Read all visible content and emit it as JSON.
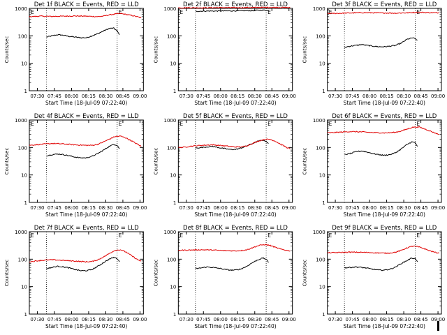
{
  "page": {
    "corner_mark_visible": true
  },
  "legend": {
    "black_label": "BLACK = Events",
    "red_label": "RED = LLD"
  },
  "colors": {
    "events": "#000000",
    "lld": "#e00000",
    "axis": "#000000",
    "background": "#ffffff"
  },
  "shared": {
    "xlabel": "Start Time (18-Jul-09 07:22:40)",
    "ylabel": "Counts/sec",
    "xticks": [
      "07:30",
      "07:45",
      "08:00",
      "08:15",
      "08:30",
      "08:45",
      "09:00"
    ],
    "xticks_minutes": [
      7,
      22,
      37,
      52,
      67,
      82,
      97
    ],
    "xlim_minutes": [
      0,
      100
    ],
    "ylim": [
      1,
      1000
    ],
    "yscale": "log",
    "yticks": [
      1,
      10,
      100,
      1000
    ],
    "ytick_labels": [
      "1",
      "10",
      "100",
      "1000"
    ],
    "dotted_vlines_minutes": [
      15,
      77
    ]
  },
  "chart_data": [
    {
      "type": "line",
      "detector": "1f",
      "title": "Det 1f BLACK = Events, RED = LLD",
      "corner_label": "E",
      "marker_label": "E",
      "series": [
        {
          "name": "Events",
          "color": "#000000",
          "x": [
            15,
            20,
            25,
            30,
            35,
            40,
            45,
            50,
            55,
            60,
            65,
            70,
            74,
            77,
            79
          ],
          "values": [
            90,
            100,
            110,
            105,
            95,
            90,
            85,
            85,
            100,
            120,
            150,
            185,
            190,
            150,
            110
          ]
        },
        {
          "name": "LLD",
          "color": "#e00000",
          "x": [
            0,
            10,
            20,
            30,
            40,
            50,
            60,
            65,
            70,
            75,
            80,
            85,
            90,
            95,
            98
          ],
          "values": [
            500,
            520,
            510,
            520,
            530,
            520,
            500,
            520,
            580,
            620,
            650,
            600,
            550,
            490,
            450
          ]
        }
      ]
    },
    {
      "type": "line",
      "detector": "2f",
      "title": "Det 2f BLACK = Events, RED = LLD",
      "corner_label": "E",
      "marker_label": "E",
      "series": [
        {
          "name": "Events",
          "color": "#000000",
          "x": [
            15,
            25,
            35,
            45,
            55,
            65,
            70,
            75,
            79
          ],
          "values": [
            780,
            800,
            800,
            810,
            820,
            830,
            850,
            860,
            840
          ]
        },
        {
          "name": "LLD",
          "color": "#e00000",
          "x": [
            0,
            10,
            20,
            30,
            40,
            50,
            60,
            70,
            80,
            90,
            98
          ],
          "values": [
            1050,
            1060,
            1050,
            1060,
            1070,
            1060,
            1070,
            1080,
            1090,
            1080,
            1070
          ]
        }
      ]
    },
    {
      "type": "line",
      "detector": "3f",
      "title": "Det 3f BLACK = Events, RED = LLD",
      "corner_label": "E",
      "marker_label": "E",
      "series": [
        {
          "name": "Events",
          "color": "#000000",
          "x": [
            15,
            20,
            25,
            30,
            35,
            40,
            45,
            50,
            55,
            60,
            65,
            70,
            75,
            79
          ],
          "values": [
            38,
            42,
            45,
            48,
            45,
            42,
            40,
            40,
            42,
            45,
            55,
            75,
            85,
            70
          ]
        },
        {
          "name": "LLD",
          "color": "#e00000",
          "x": [
            0,
            10,
            20,
            30,
            40,
            50,
            60,
            70,
            80,
            90,
            98
          ],
          "values": [
            650,
            660,
            680,
            700,
            690,
            680,
            670,
            690,
            720,
            700,
            690
          ]
        }
      ]
    },
    {
      "type": "line",
      "detector": "4f",
      "title": "Det 4f BLACK = Events, RED = LLD",
      "corner_label": "E",
      "marker_label": "E",
      "series": [
        {
          "name": "Events",
          "color": "#000000",
          "x": [
            15,
            20,
            25,
            30,
            35,
            40,
            45,
            50,
            55,
            60,
            65,
            70,
            74,
            77,
            79
          ],
          "values": [
            50,
            55,
            58,
            55,
            50,
            45,
            42,
            42,
            48,
            60,
            80,
            110,
            130,
            120,
            90
          ]
        },
        {
          "name": "LLD",
          "color": "#e00000",
          "x": [
            0,
            5,
            10,
            20,
            30,
            40,
            50,
            55,
            60,
            65,
            70,
            75,
            80,
            85,
            90,
            95,
            98
          ],
          "values": [
            120,
            125,
            130,
            140,
            135,
            125,
            120,
            120,
            130,
            160,
            200,
            250,
            260,
            220,
            170,
            130,
            110
          ]
        }
      ]
    },
    {
      "type": "line",
      "detector": "5f",
      "title": "Det 5f BLACK = Events, RED = LLD",
      "corner_label": "E",
      "marker_label": "E",
      "series": [
        {
          "name": "Events",
          "color": "#000000",
          "x": [
            15,
            20,
            25,
            30,
            35,
            40,
            45,
            50,
            55,
            60,
            65,
            70,
            74,
            77,
            79
          ],
          "values": [
            95,
            100,
            105,
            110,
            100,
            92,
            85,
            85,
            95,
            115,
            140,
            170,
            185,
            170,
            140
          ]
        },
        {
          "name": "LLD",
          "color": "#e00000",
          "x": [
            0,
            5,
            10,
            20,
            30,
            40,
            50,
            55,
            60,
            65,
            70,
            75,
            80,
            85,
            90,
            95,
            98
          ],
          "values": [
            100,
            102,
            110,
            120,
            125,
            115,
            105,
            105,
            115,
            140,
            170,
            195,
            200,
            170,
            130,
            100,
            90
          ]
        }
      ]
    },
    {
      "type": "line",
      "detector": "6f",
      "title": "Det 6f BLACK = Events, RED = LLD",
      "corner_label": "E",
      "marker_label": "E",
      "series": [
        {
          "name": "Events",
          "color": "#000000",
          "x": [
            15,
            20,
            25,
            30,
            35,
            40,
            45,
            50,
            55,
            60,
            65,
            70,
            74,
            77,
            79
          ],
          "values": [
            55,
            60,
            70,
            75,
            68,
            60,
            55,
            52,
            55,
            65,
            90,
            130,
            160,
            150,
            110
          ]
        },
        {
          "name": "LLD",
          "color": "#e00000",
          "x": [
            0,
            10,
            20,
            30,
            40,
            50,
            55,
            60,
            65,
            70,
            75,
            80,
            85,
            90,
            95,
            98
          ],
          "values": [
            340,
            360,
            380,
            370,
            350,
            340,
            345,
            360,
            400,
            470,
            550,
            560,
            480,
            400,
            330,
            300
          ]
        }
      ]
    },
    {
      "type": "line",
      "detector": "7f",
      "title": "Det 7f BLACK = Events, RED = LLD",
      "corner_label": "E",
      "marker_label": "E",
      "series": [
        {
          "name": "Events",
          "color": "#000000",
          "x": [
            15,
            20,
            25,
            30,
            35,
            40,
            45,
            50,
            55,
            60,
            65,
            70,
            74,
            77,
            79
          ],
          "values": [
            45,
            50,
            55,
            52,
            48,
            42,
            38,
            38,
            42,
            55,
            75,
            100,
            115,
            105,
            80
          ]
        },
        {
          "name": "LLD",
          "color": "#e00000",
          "x": [
            0,
            5,
            10,
            20,
            30,
            40,
            50,
            55,
            60,
            65,
            70,
            75,
            80,
            85,
            90,
            95,
            98
          ],
          "values": [
            80,
            85,
            90,
            95,
            90,
            85,
            80,
            82,
            95,
            120,
            160,
            210,
            220,
            180,
            130,
            95,
            85
          ]
        }
      ]
    },
    {
      "type": "line",
      "detector": "8f",
      "title": "Det 8f BLACK = Events, RED = LLD",
      "corner_label": "E",
      "marker_label": "E",
      "series": [
        {
          "name": "Events",
          "color": "#000000",
          "x": [
            15,
            20,
            25,
            30,
            35,
            40,
            45,
            50,
            55,
            60,
            65,
            70,
            74,
            77,
            79
          ],
          "values": [
            45,
            48,
            52,
            50,
            47,
            43,
            40,
            40,
            44,
            55,
            75,
            95,
            110,
            100,
            75
          ]
        },
        {
          "name": "LLD",
          "color": "#e00000",
          "x": [
            0,
            10,
            20,
            30,
            40,
            50,
            55,
            60,
            65,
            70,
            75,
            80,
            85,
            90,
            95,
            98
          ],
          "values": [
            210,
            215,
            220,
            215,
            205,
            200,
            205,
            220,
            260,
            310,
            340,
            320,
            270,
            230,
            210,
            200
          ]
        }
      ]
    },
    {
      "type": "line",
      "detector": "9f",
      "title": "Det 9f BLACK = Events, RED = LLD",
      "corner_label": "E",
      "marker_label": "E",
      "series": [
        {
          "name": "Events",
          "color": "#000000",
          "x": [
            15,
            20,
            25,
            30,
            35,
            40,
            45,
            50,
            55,
            60,
            65,
            70,
            74,
            77,
            79
          ],
          "values": [
            48,
            50,
            52,
            50,
            47,
            43,
            40,
            40,
            43,
            52,
            70,
            90,
            110,
            105,
            80
          ]
        },
        {
          "name": "LLD",
          "color": "#e00000",
          "x": [
            0,
            10,
            20,
            30,
            40,
            50,
            55,
            60,
            65,
            70,
            75,
            80,
            85,
            90,
            95,
            98
          ],
          "values": [
            170,
            175,
            180,
            178,
            172,
            165,
            168,
            180,
            210,
            260,
            300,
            280,
            240,
            200,
            175,
            165
          ]
        }
      ]
    }
  ]
}
